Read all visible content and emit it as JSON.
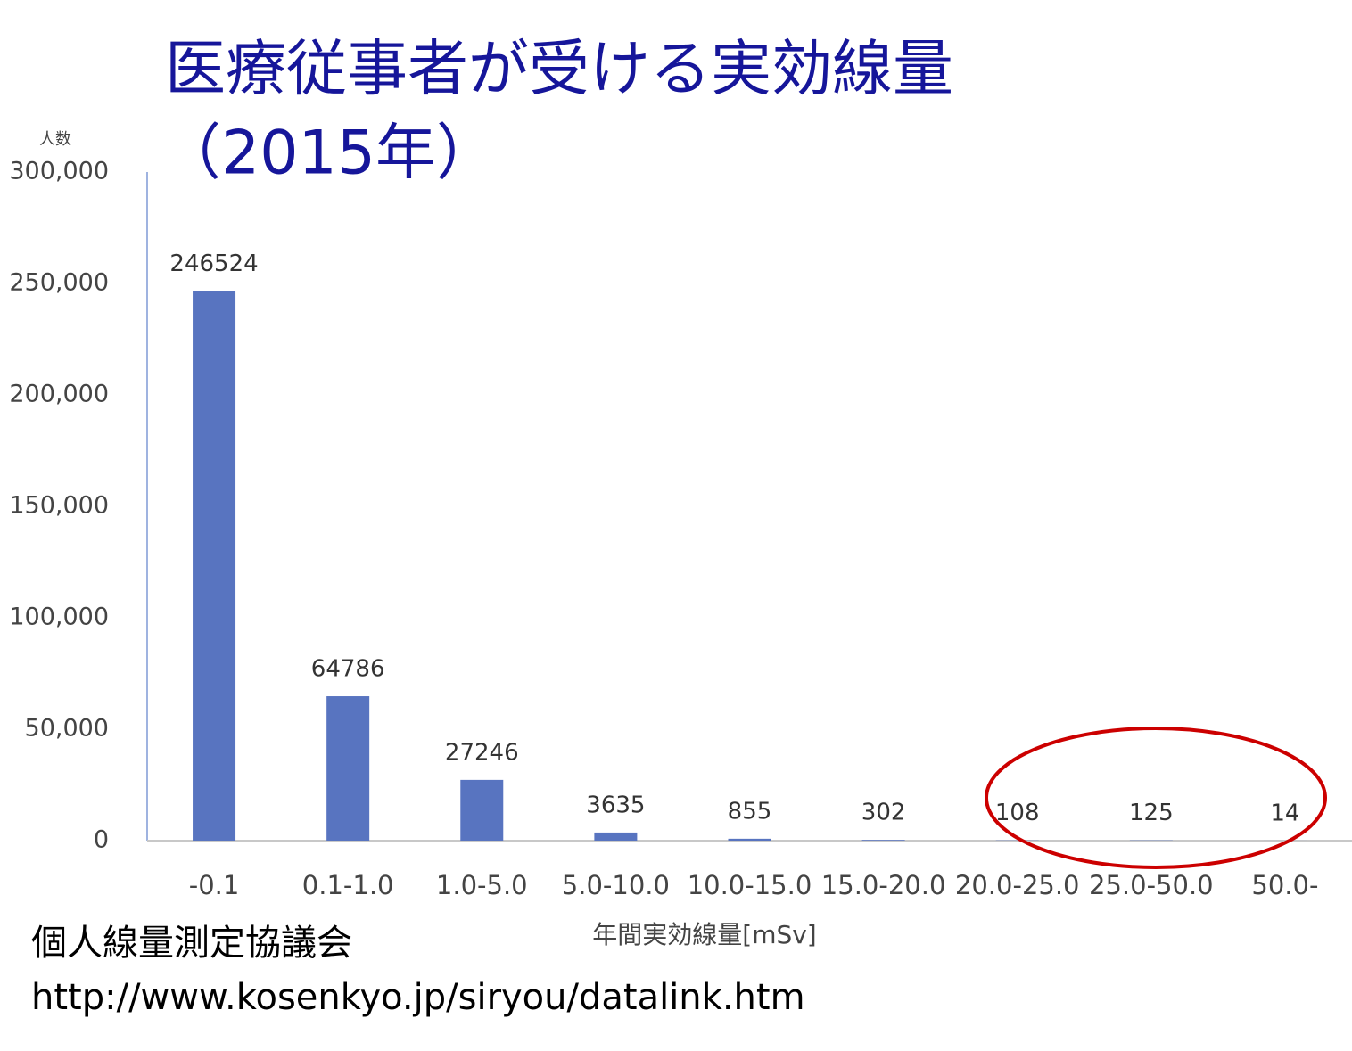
{
  "chart_data": {
    "type": "bar",
    "title": "医療従事者が受ける実効線量",
    "subtitle": "（2015年）",
    "y_label": "人数",
    "x_label": "年間実効線量[mSv]",
    "source": "個人線量測定協議会",
    "source_url": "http://www.kosenkyo.jp/siryou/datalink.htm",
    "categories": [
      "-0.1",
      "0.1-1.0",
      "1.0-5.0",
      "5.0-10.0",
      "10.0-15.0",
      "15.0-20.0",
      "20.0-25.0",
      "25.0-50.0",
      "50.0-"
    ],
    "values": [
      246524,
      64786,
      27246,
      3635,
      855,
      302,
      108,
      125,
      14
    ],
    "color": "#5874c0",
    "ylim": [
      0,
      300000
    ],
    "yticks": [
      0,
      {
        "value": 50000,
        "label": "50,000"
      },
      {
        "value": 100000,
        "label": "100,000"
      },
      {
        "value": 150000,
        "label": "150,000"
      },
      {
        "value": 200000,
        "label": "200,000"
      },
      {
        "value": 250000,
        "label": "250,000"
      },
      {
        "value": 300000,
        "label": "300,000"
      }
    ],
    "grid": false
  }
}
